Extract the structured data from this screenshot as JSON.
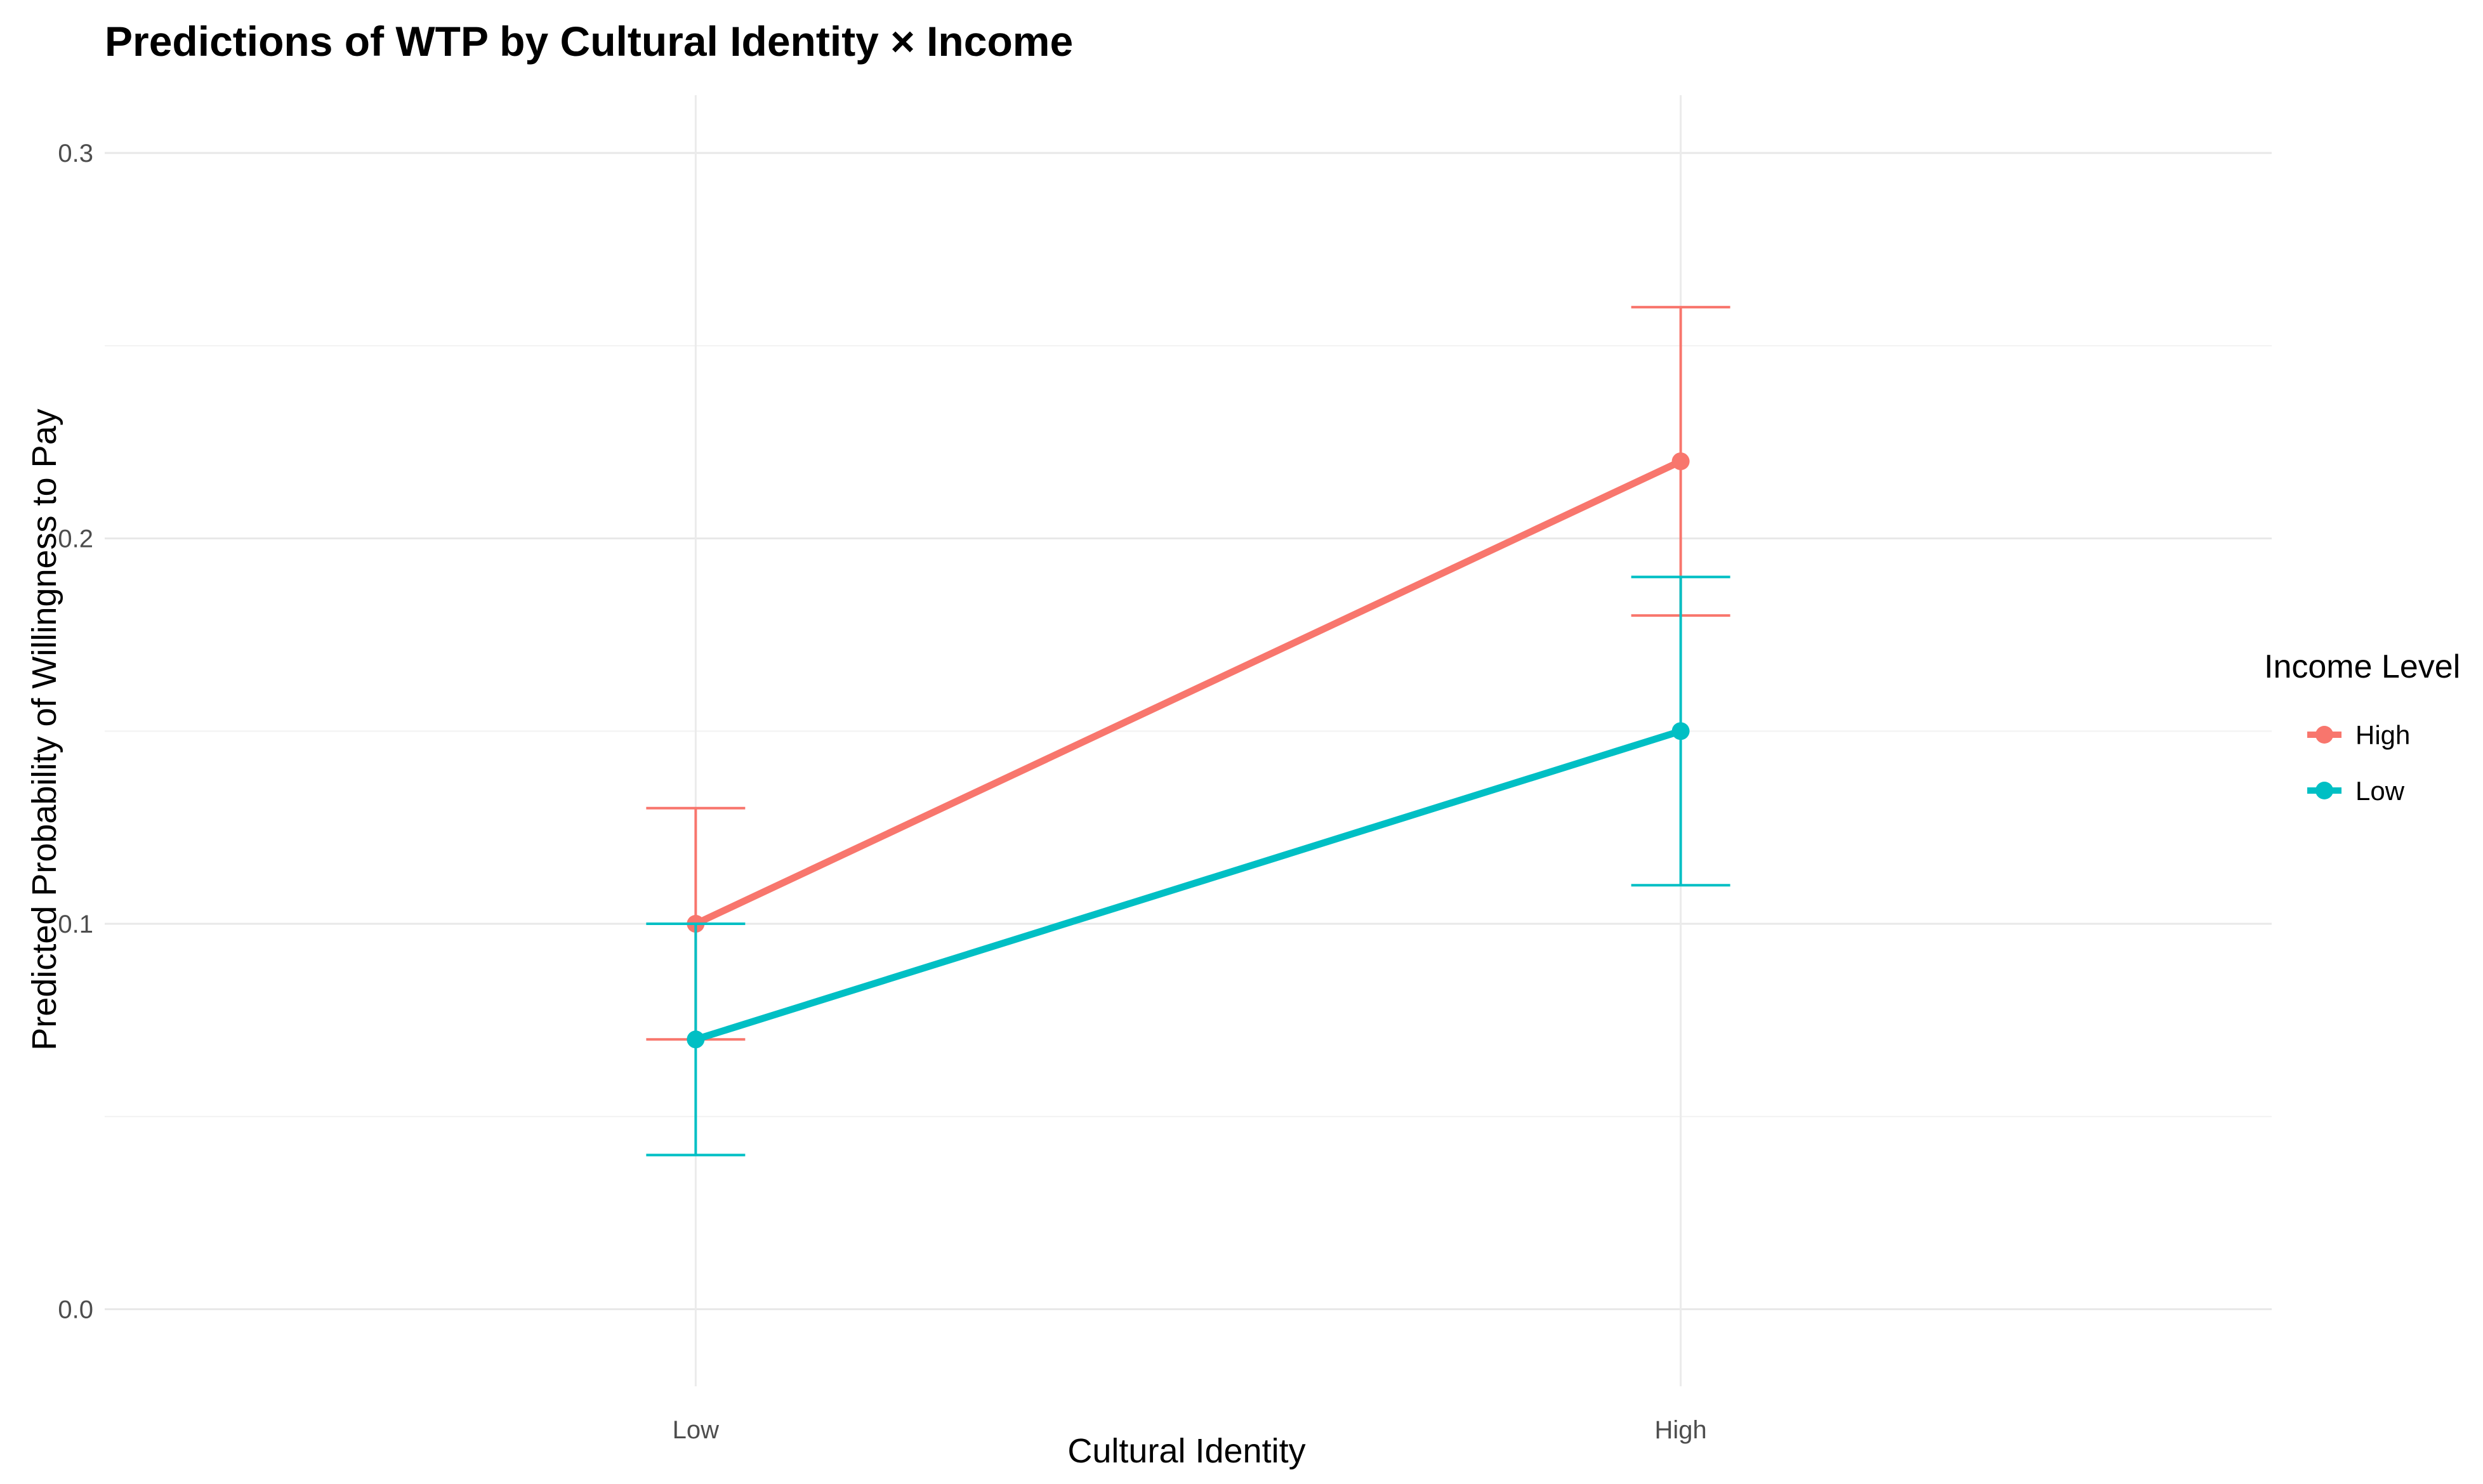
{
  "chart_data": {
    "type": "line",
    "title": "Predictions of WTP by Cultural Identity × Income",
    "xlabel": "Cultural Identity",
    "ylabel": "Predicted Probability of Willingness to Pay",
    "categories": [
      "Low",
      "High"
    ],
    "ylim": [
      -0.02,
      0.315
    ],
    "yticks": [
      0.0,
      0.1,
      0.2,
      0.3
    ],
    "ytick_labels": [
      "0.0",
      "0.1",
      "0.2",
      "0.3"
    ],
    "grid": true,
    "legend": {
      "title": "Income Level",
      "position": "right"
    },
    "series": [
      {
        "name": "High",
        "color": "#F8766D",
        "values": [
          0.1,
          0.22
        ],
        "lower": [
          0.07,
          0.18
        ],
        "upper": [
          0.13,
          0.26
        ]
      },
      {
        "name": "Low",
        "color": "#00BFC4",
        "values": [
          0.07,
          0.15
        ],
        "lower": [
          0.04,
          0.11
        ],
        "upper": [
          0.1,
          0.19
        ]
      }
    ]
  }
}
